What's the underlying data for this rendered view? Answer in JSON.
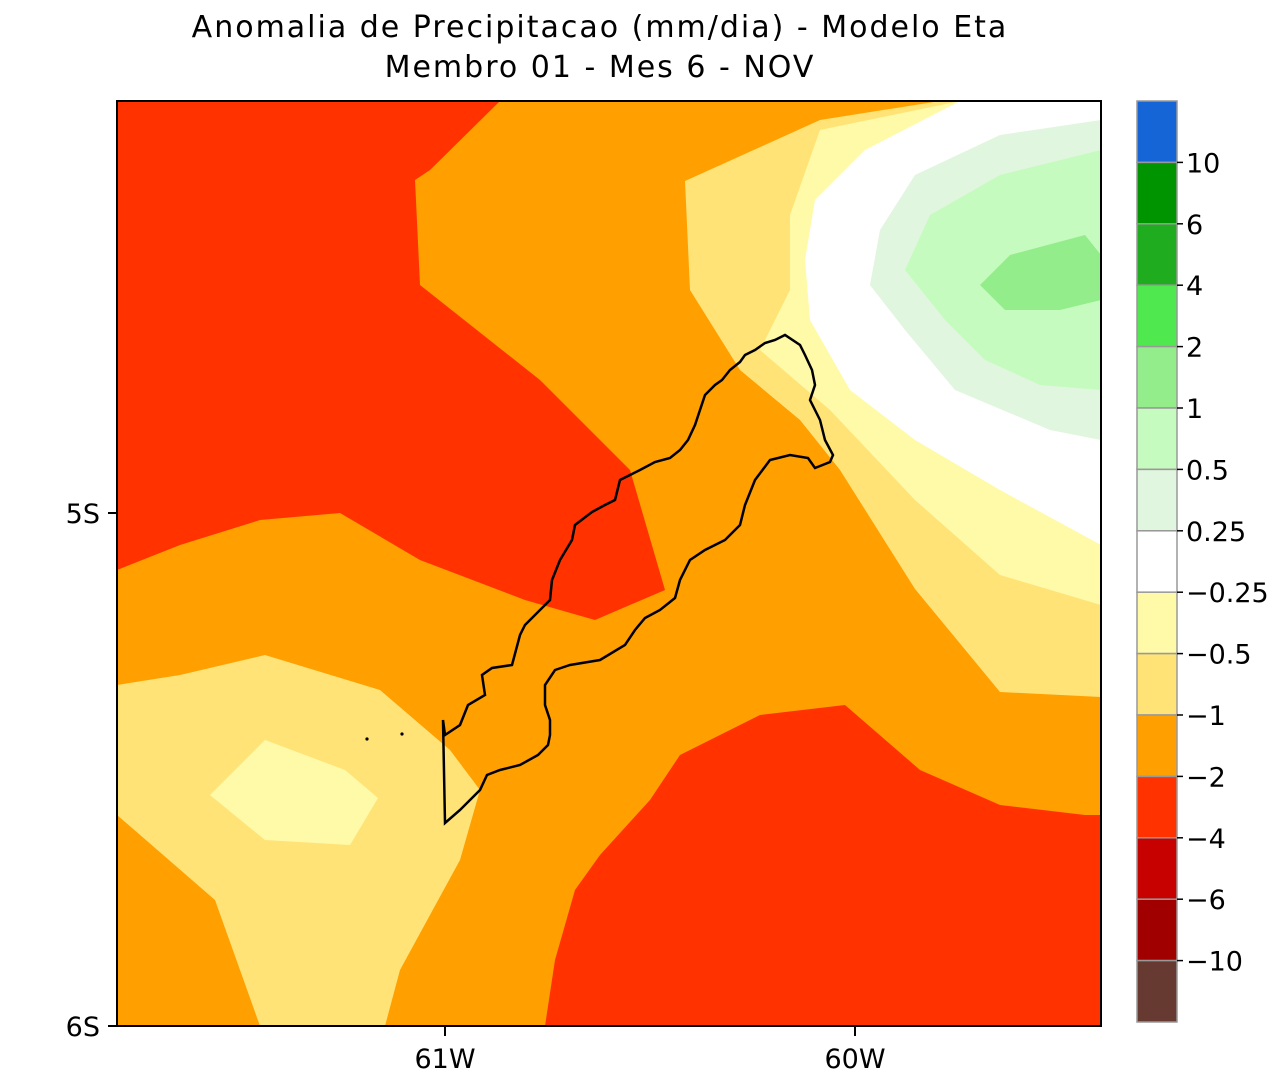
{
  "title": "Anomalia de Precipitacao (mm/dia) - Modelo Eta",
  "subtitle": "Membro 01 - Mes 6 - NOV",
  "axes": {
    "y_ticks": [
      "5S",
      "6S"
    ],
    "x_ticks": [
      "61W",
      "60W"
    ]
  },
  "legend": {
    "colors": [
      "#1565d6",
      "#009400",
      "#1fad1f",
      "#4fe84f",
      "#93ed8a",
      "#c6fbbf",
      "#e1f6de",
      "#ffffff",
      "#fffaa8",
      "#ffe377",
      "#ff9f00",
      "#ff3200",
      "#c70000",
      "#a10000",
      "#663a30"
    ],
    "labels": [
      "10",
      "6",
      "4",
      "2",
      "1",
      "0.5",
      "0.25",
      "−0.25",
      "−0.5",
      "−1",
      "−2",
      "−4",
      "−6",
      "−10"
    ]
  },
  "map": {
    "region": "Amazon basin, southern hemisphere (around 5S-6S, 60W-61W)",
    "field": "precipitation anomaly",
    "units": "mm/dia"
  }
}
